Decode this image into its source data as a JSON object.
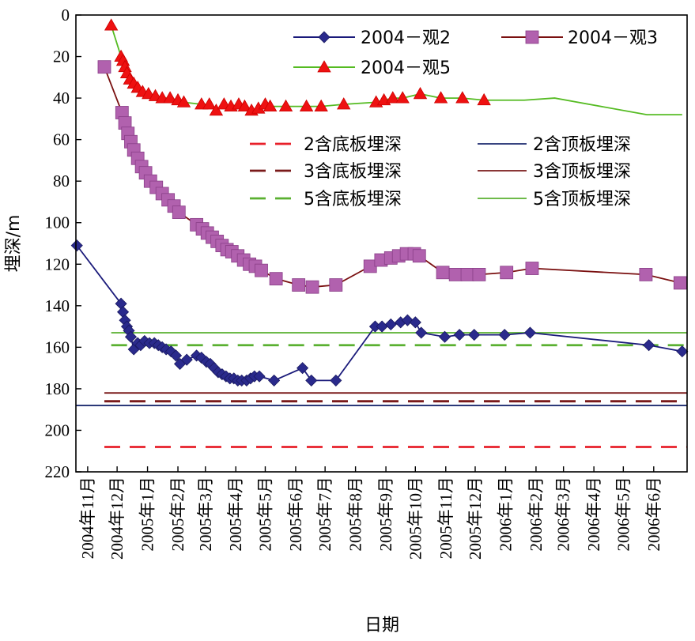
{
  "chart_data": {
    "type": "line",
    "xlabel": "日期",
    "ylabel": "埋深/m",
    "y_inverted": true,
    "ylim": [
      0,
      220
    ],
    "y_ticks": [
      0,
      20,
      40,
      60,
      80,
      100,
      120,
      140,
      160,
      180,
      200,
      220
    ],
    "x_range": [
      "2004-10-20",
      "2006-07-05"
    ],
    "month_ticks": [
      {
        "date": "2004-11-01",
        "label": "2004年11月"
      },
      {
        "date": "2004-12-01",
        "label": "2004年12月"
      },
      {
        "date": "2005-01-01",
        "label": "2005年1月"
      },
      {
        "date": "2005-02-01",
        "label": "2005年2月"
      },
      {
        "date": "2005-03-01",
        "label": "2005年3月"
      },
      {
        "date": "2005-04-01",
        "label": "2005年4月"
      },
      {
        "date": "2005-05-01",
        "label": "2005年5月"
      },
      {
        "date": "2005-06-01",
        "label": "2005年6月"
      },
      {
        "date": "2005-07-01",
        "label": "2005年7月"
      },
      {
        "date": "2005-08-01",
        "label": "2005年8月"
      },
      {
        "date": "2005-09-01",
        "label": "2005年9月"
      },
      {
        "date": "2005-10-01",
        "label": "2005年10月"
      },
      {
        "date": "2005-11-01",
        "label": "2005年11月"
      },
      {
        "date": "2005-12-01",
        "label": "2005年12月"
      },
      {
        "date": "2006-01-01",
        "label": "2006年1月"
      },
      {
        "date": "2006-02-01",
        "label": "2006年2月"
      },
      {
        "date": "2006-03-01",
        "label": "2006年3月"
      },
      {
        "date": "2006-04-01",
        "label": "2006年4月"
      },
      {
        "date": "2006-05-01",
        "label": "2006年5月"
      },
      {
        "date": "2006-06-01",
        "label": "2006年6月"
      }
    ],
    "series": [
      {
        "name": "2004－观2",
        "color": "#1a1a7a",
        "marker": "diamond",
        "points": [
          [
            "2004-10-21",
            111
          ],
          [
            "2004-12-05",
            139
          ],
          [
            "2004-12-07",
            143
          ],
          [
            "2004-12-09",
            147
          ],
          [
            "2004-12-11",
            150
          ],
          [
            "2004-12-13",
            152
          ],
          [
            "2004-12-15",
            155
          ],
          [
            "2004-12-18",
            161
          ],
          [
            "2004-12-22",
            158
          ],
          [
            "2004-12-25",
            159
          ],
          [
            "2004-12-29",
            157
          ],
          [
            "2005-01-03",
            158
          ],
          [
            "2005-01-08",
            158
          ],
          [
            "2005-01-12",
            159
          ],
          [
            "2005-01-16",
            160
          ],
          [
            "2005-01-20",
            161
          ],
          [
            "2005-01-25",
            162
          ],
          [
            "2005-01-30",
            164
          ],
          [
            "2005-02-03",
            168
          ],
          [
            "2005-02-10",
            166
          ],
          [
            "2005-02-20",
            164
          ],
          [
            "2005-02-25",
            165
          ],
          [
            "2005-03-02",
            167
          ],
          [
            "2005-03-06",
            168
          ],
          [
            "2005-03-10",
            170
          ],
          [
            "2005-03-14",
            172
          ],
          [
            "2005-03-18",
            173
          ],
          [
            "2005-03-22",
            174
          ],
          [
            "2005-03-26",
            175
          ],
          [
            "2005-03-30",
            175
          ],
          [
            "2005-04-03",
            176
          ],
          [
            "2005-04-07",
            176
          ],
          [
            "2005-04-12",
            176
          ],
          [
            "2005-04-16",
            175
          ],
          [
            "2005-04-20",
            174
          ],
          [
            "2005-04-25",
            174
          ],
          [
            "2005-05-10",
            176
          ],
          [
            "2005-06-08",
            170
          ],
          [
            "2005-06-17",
            176
          ],
          [
            "2005-07-12",
            176
          ],
          [
            "2005-08-21",
            150
          ],
          [
            "2005-08-28",
            150
          ],
          [
            "2005-09-06",
            149
          ],
          [
            "2005-09-16",
            148
          ],
          [
            "2005-09-23",
            147
          ],
          [
            "2005-10-01",
            148
          ],
          [
            "2005-10-07",
            153
          ],
          [
            "2005-10-31",
            155
          ],
          [
            "2005-11-15",
            154
          ],
          [
            "2005-11-30",
            154
          ],
          [
            "2005-12-31",
            154
          ],
          [
            "2006-01-26",
            153
          ],
          [
            "2006-05-27",
            159
          ],
          [
            "2006-06-30",
            162
          ]
        ]
      },
      {
        "name": "2004－观3",
        "color": "#7a1010",
        "marker": "square",
        "points": [
          [
            "2004-11-18",
            25
          ],
          [
            "2004-12-06",
            47
          ],
          [
            "2004-12-09",
            52
          ],
          [
            "2004-12-12",
            57
          ],
          [
            "2004-12-15",
            61
          ],
          [
            "2004-12-18",
            65
          ],
          [
            "2004-12-22",
            69
          ],
          [
            "2004-12-26",
            73
          ],
          [
            "2004-12-30",
            76
          ],
          [
            "2005-01-04",
            80
          ],
          [
            "2005-01-10",
            83
          ],
          [
            "2005-01-16",
            86
          ],
          [
            "2005-01-22",
            89
          ],
          [
            "2005-01-28",
            92
          ],
          [
            "2005-02-02",
            95
          ],
          [
            "2005-02-20",
            101
          ],
          [
            "2005-02-26",
            103
          ],
          [
            "2005-03-03",
            105
          ],
          [
            "2005-03-08",
            107
          ],
          [
            "2005-03-13",
            109
          ],
          [
            "2005-03-18",
            111
          ],
          [
            "2005-03-23",
            113
          ],
          [
            "2005-03-28",
            114
          ],
          [
            "2005-04-03",
            116
          ],
          [
            "2005-04-09",
            118
          ],
          [
            "2005-04-15",
            120
          ],
          [
            "2005-04-21",
            121
          ],
          [
            "2005-04-27",
            123
          ],
          [
            "2005-05-12",
            127
          ],
          [
            "2005-06-04",
            130
          ],
          [
            "2005-06-18",
            131
          ],
          [
            "2005-07-12",
            130
          ],
          [
            "2005-08-16",
            121
          ],
          [
            "2005-08-27",
            118
          ],
          [
            "2005-09-06",
            117
          ],
          [
            "2005-09-14",
            116
          ],
          [
            "2005-09-22",
            115
          ],
          [
            "2005-09-30",
            115
          ],
          [
            "2005-10-05",
            116
          ],
          [
            "2005-10-29",
            124
          ],
          [
            "2005-11-11",
            125
          ],
          [
            "2005-11-23",
            125
          ],
          [
            "2005-12-05",
            125
          ],
          [
            "2006-01-02",
            124
          ],
          [
            "2006-01-28",
            122
          ],
          [
            "2006-05-24",
            125
          ],
          [
            "2006-06-28",
            129
          ]
        ]
      },
      {
        "name": "2004－观5",
        "color": "#55bb22",
        "marker": "triangle",
        "points": [
          [
            "2004-11-25",
            5
          ],
          [
            "2004-12-05",
            20
          ],
          [
            "2004-12-07",
            22
          ],
          [
            "2004-12-09",
            25
          ],
          [
            "2004-12-11",
            28
          ],
          [
            "2004-12-14",
            31
          ],
          [
            "2004-12-18",
            33
          ],
          [
            "2004-12-22",
            35
          ],
          [
            "2004-12-27",
            37
          ],
          [
            "2005-01-02",
            38
          ],
          [
            "2005-01-09",
            39
          ],
          [
            "2005-01-16",
            40
          ],
          [
            "2005-01-24",
            40
          ],
          [
            "2005-02-01",
            41
          ],
          [
            "2005-02-07",
            42
          ],
          [
            "2005-02-25",
            43
          ],
          [
            "2005-03-05",
            43
          ],
          [
            "2005-03-12",
            46
          ],
          [
            "2005-03-20",
            43
          ],
          [
            "2005-03-27",
            44
          ],
          [
            "2005-04-04",
            43
          ],
          [
            "2005-04-10",
            44
          ],
          [
            "2005-04-17",
            46
          ],
          [
            "2005-04-24",
            45
          ],
          [
            "2005-05-01",
            43
          ],
          [
            "2005-05-06",
            44
          ],
          [
            "2005-05-22",
            44
          ],
          [
            "2005-06-12",
            44
          ],
          [
            "2005-06-27",
            44
          ],
          [
            "2005-07-20",
            43
          ],
          [
            "2005-08-22",
            42
          ],
          [
            "2005-08-30",
            41
          ],
          [
            "2005-09-08",
            40
          ],
          [
            "2005-09-18",
            40
          ],
          [
            "2005-10-06",
            38
          ],
          [
            "2005-10-27",
            40
          ],
          [
            "2005-11-18",
            40
          ],
          [
            "2005-12-10",
            41
          ],
          [
            "2006-01-20",
            41
          ],
          [
            "2006-02-20",
            40
          ],
          [
            "2006-05-25",
            48
          ],
          [
            "2006-06-30",
            48
          ]
        ]
      }
    ],
    "reference_lines": [
      {
        "name": "2含底板埋深",
        "value": 208,
        "color": "#e8202a",
        "style": "dashed",
        "start": "2004-11-18"
      },
      {
        "name": "2含顶板埋深",
        "value": 188,
        "color": "#1c2a6e",
        "style": "solid",
        "start": "2004-10-20"
      },
      {
        "name": "3含底板埋深",
        "value": 186,
        "color": "#7a1a1a",
        "style": "dashed",
        "start": "2004-11-18"
      },
      {
        "name": "3含顶板埋深",
        "value": 182,
        "color": "#7a1a1a",
        "style": "solid",
        "start": "2004-11-18"
      },
      {
        "name": "5含底板埋深",
        "value": 159,
        "color": "#5ab030",
        "style": "dashed",
        "start": "2004-11-25"
      },
      {
        "name": "5含顶板埋深",
        "value": 153,
        "color": "#5ab030",
        "style": "solid",
        "start": "2004-11-25"
      }
    ],
    "legend_placement": "top-right, inside plot"
  }
}
